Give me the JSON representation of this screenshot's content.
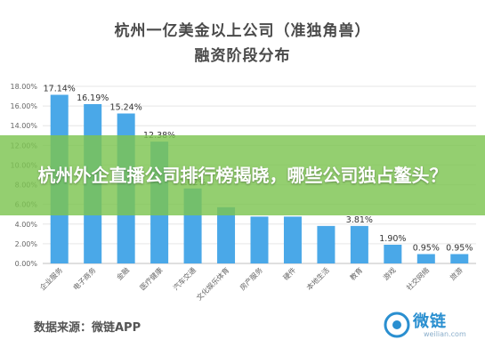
{
  "chart_data": {
    "type": "bar",
    "title": "杭州一亿美金以上公司（准独角兽）",
    "subtitle": "融资阶段分布",
    "categories": [
      "企业服务",
      "电子商务",
      "金融",
      "医疗健康",
      "汽车交通",
      "文化娱乐体育",
      "房产服务",
      "硬件",
      "本地生活",
      "教育",
      "游戏",
      "社交网络",
      "旅游"
    ],
    "values": [
      17.14,
      16.19,
      15.24,
      12.38,
      7.62,
      5.71,
      4.76,
      4.76,
      3.81,
      3.81,
      1.9,
      0.95,
      0.95
    ],
    "value_labels": [
      "17.14%",
      "16.19%",
      "15.24%",
      "12.38%",
      "7.62%",
      "",
      "",
      "",
      "",
      "3.81%",
      "1.90%",
      "0.95%",
      "0.95%"
    ],
    "y_ticks": [
      "0.00%",
      "2.00%",
      "4.00%",
      "6.00%",
      "8.00%",
      "10.00%",
      "12.00%",
      "14.00%",
      "16.00%",
      "18.00%"
    ],
    "ylim": [
      0,
      18
    ],
    "bar_color": "#4aa8e8",
    "xlabel": "",
    "ylabel": ""
  },
  "overlay": {
    "headline": "杭州外企直播公司排行榜揭晓，哪些公司独占鳌头？",
    "color": "#7dc450"
  },
  "footer": {
    "source": "数据来源：微链APP",
    "logo_text": "微链",
    "logo_url_text": "weilian.com"
  }
}
